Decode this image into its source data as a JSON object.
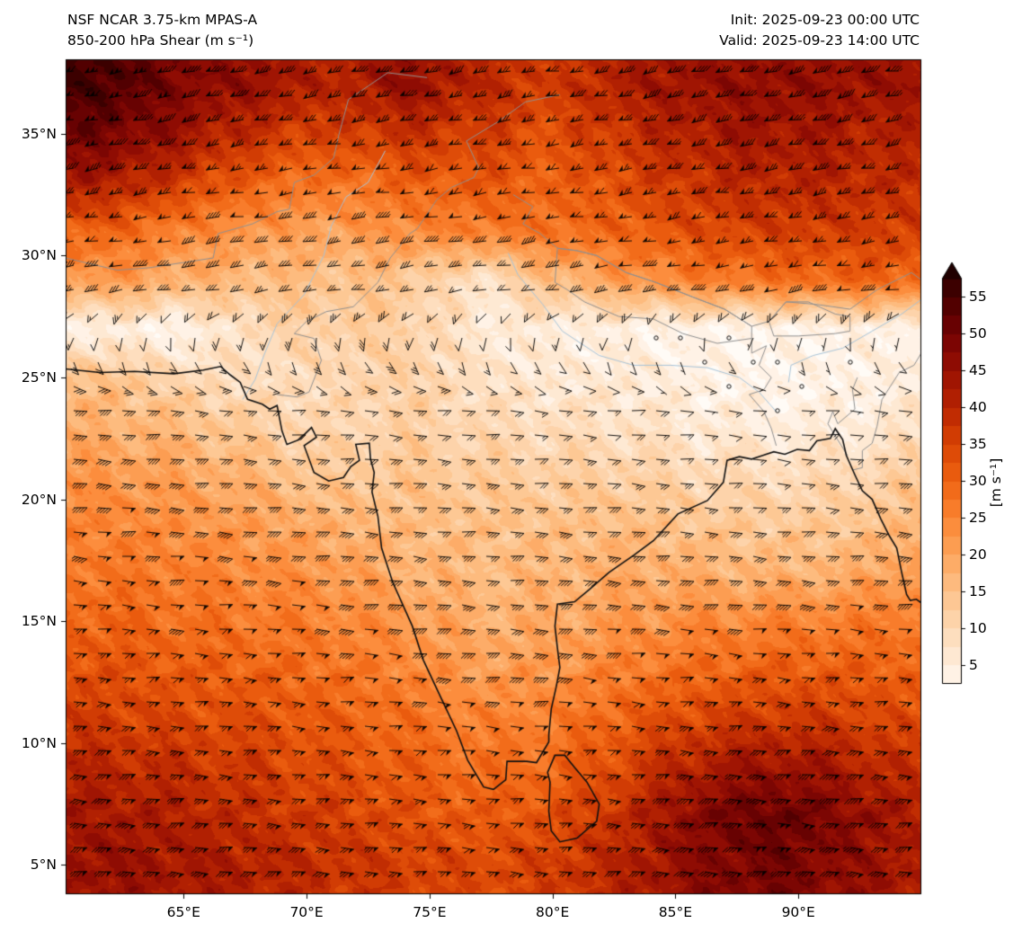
{
  "header": {
    "title_line1": "NSF NCAR 3.75-km MPAS-A",
    "title_line2": "850-200 hPa Shear (m s⁻¹)",
    "init_line": "Init: 2025-09-23 00:00 UTC",
    "valid_line": "Valid: 2025-09-23 14:00 UTC"
  },
  "axes": {
    "y_ticks": [
      {
        "label": "35°N",
        "lat": 35
      },
      {
        "label": "30°N",
        "lat": 30
      },
      {
        "label": "25°N",
        "lat": 25
      },
      {
        "label": "20°N",
        "lat": 20
      },
      {
        "label": "15°N",
        "lat": 15
      },
      {
        "label": "10°N",
        "lat": 10
      },
      {
        "label": "5°N",
        "lat": 5
      }
    ],
    "x_ticks": [
      {
        "label": "65°E",
        "lon": 65
      },
      {
        "label": "70°E",
        "lon": 70
      },
      {
        "label": "75°E",
        "lon": 75
      },
      {
        "label": "80°E",
        "lon": 80
      },
      {
        "label": "85°E",
        "lon": 85
      },
      {
        "label": "90°E",
        "lon": 90
      }
    ]
  },
  "colorbar": {
    "ticks": [
      5,
      10,
      15,
      20,
      25,
      30,
      35,
      40,
      45,
      50,
      55
    ],
    "unit_label": "[m s⁻¹]",
    "vmin": 2.5,
    "vmax": 57.5,
    "extend": "max"
  },
  "chart_data": {
    "type": "heatmap",
    "title": "850-200 hPa Shear (m s⁻¹)",
    "model": "NSF NCAR 3.75-km MPAS-A",
    "init": "2025-09-23 00:00 UTC",
    "valid": "2025-09-23 14:00 UTC",
    "xlabel": "",
    "ylabel": "",
    "grid": false,
    "colorbar_position": "right",
    "lon_range": [
      60.2,
      95.0
    ],
    "lat_range": [
      3.8,
      38.05
    ],
    "grid_lons": [
      62,
      65,
      68,
      71,
      74,
      77,
      80,
      83,
      86,
      89,
      92,
      95
    ],
    "grid_lats": [
      37,
      35,
      33,
      31,
      29,
      27,
      25,
      23,
      21,
      19,
      17,
      15,
      13,
      11,
      9,
      7,
      5
    ],
    "shear_values": [
      [
        55,
        48,
        45,
        40,
        46,
        40,
        36,
        42,
        45,
        46,
        45,
        44
      ],
      [
        50,
        44,
        38,
        35,
        38,
        36,
        33,
        38,
        42,
        44,
        42,
        40
      ],
      [
        42,
        36,
        30,
        27,
        30,
        32,
        30,
        34,
        38,
        40,
        40,
        38
      ],
      [
        30,
        25,
        22,
        20,
        24,
        26,
        28,
        30,
        34,
        36,
        36,
        36
      ],
      [
        22,
        18,
        16,
        15,
        14,
        7,
        16,
        22,
        26,
        28,
        30,
        30
      ],
      [
        4,
        3,
        10,
        12,
        12,
        6,
        5,
        4,
        3,
        3,
        4,
        4
      ],
      [
        15,
        10,
        8,
        10,
        12,
        8,
        6,
        6,
        4,
        3,
        4,
        5
      ],
      [
        18,
        16,
        12,
        10,
        12,
        10,
        9,
        8,
        6,
        5,
        5,
        8
      ],
      [
        22,
        20,
        17,
        13,
        14,
        13,
        12,
        12,
        10,
        9,
        10,
        13
      ],
      [
        25,
        23,
        21,
        18,
        16,
        15,
        15,
        16,
        14,
        13,
        14,
        17
      ],
      [
        27,
        26,
        24,
        22,
        18,
        16,
        17,
        19,
        18,
        17,
        18,
        22
      ],
      [
        30,
        28,
        27,
        25,
        22,
        18,
        19,
        22,
        24,
        25,
        26,
        27
      ],
      [
        33,
        31,
        30,
        28,
        25,
        21,
        22,
        26,
        29,
        31,
        31,
        30
      ],
      [
        36,
        34,
        33,
        31,
        28,
        25,
        26,
        31,
        35,
        37,
        36,
        33
      ],
      [
        40,
        38,
        36,
        33,
        31,
        28,
        29,
        35,
        42,
        45,
        42,
        37
      ],
      [
        43,
        41,
        38,
        36,
        33,
        31,
        33,
        39,
        48,
        52,
        47,
        41
      ],
      [
        45,
        43,
        41,
        38,
        36,
        34,
        36,
        41,
        47,
        50,
        46,
        42
      ]
    ],
    "colormap": [
      [
        0,
        "#ffffff"
      ],
      [
        5,
        "#ffeedd"
      ],
      [
        10,
        "#fdd9b4"
      ],
      [
        15,
        "#fdc28a"
      ],
      [
        20,
        "#fda55c"
      ],
      [
        25,
        "#fb8533"
      ],
      [
        30,
        "#ef6312"
      ],
      [
        35,
        "#d94404"
      ],
      [
        40,
        "#b92502"
      ],
      [
        45,
        "#981003"
      ],
      [
        50,
        "#730203"
      ],
      [
        55,
        "#470000"
      ],
      [
        60,
        "#1c0000"
      ]
    ],
    "wind": {
      "description": "850-200 hPa shear vector barbs; westerlies north of ~28N, calm band near 26-27N, easterlies south of ~24N",
      "dir_from_north_deg": 262,
      "dir_from_south_deg": 95,
      "transition_lat": [
        24,
        28.5
      ],
      "calm_threshold_kt": 5,
      "barb_spacing_px": 27
    },
    "map": {
      "coastline": [
        [
          60.2,
          25.35
        ],
        [
          61.6,
          25.2
        ],
        [
          63.0,
          25.25
        ],
        [
          64.6,
          25.15
        ],
        [
          65.8,
          25.3
        ],
        [
          66.5,
          25.45
        ],
        [
          66.9,
          25.1
        ],
        [
          67.3,
          24.8
        ],
        [
          67.6,
          24.1
        ],
        [
          68.2,
          23.9
        ],
        [
          68.5,
          23.7
        ],
        [
          68.8,
          23.85
        ],
        [
          69.0,
          22.8
        ],
        [
          69.2,
          22.25
        ],
        [
          69.7,
          22.45
        ],
        [
          70.2,
          22.95
        ],
        [
          70.4,
          22.55
        ],
        [
          69.9,
          22.2
        ],
        [
          70.3,
          21.1
        ],
        [
          70.9,
          20.75
        ],
        [
          71.5,
          20.9
        ],
        [
          71.8,
          21.35
        ],
        [
          72.15,
          21.6
        ],
        [
          72.0,
          22.25
        ],
        [
          72.55,
          22.3
        ],
        [
          72.6,
          21.65
        ],
        [
          72.75,
          21.1
        ],
        [
          72.66,
          20.3
        ],
        [
          72.9,
          19.3
        ],
        [
          73.05,
          18.0
        ],
        [
          73.5,
          16.6
        ],
        [
          74.3,
          14.8
        ],
        [
          74.75,
          13.4
        ],
        [
          75.4,
          12.0
        ],
        [
          76.1,
          10.5
        ],
        [
          76.55,
          9.3
        ],
        [
          77.2,
          8.2
        ],
        [
          77.6,
          8.1
        ],
        [
          78.1,
          8.5
        ],
        [
          78.15,
          9.25
        ],
        [
          78.95,
          9.25
        ],
        [
          79.35,
          9.2
        ],
        [
          79.85,
          10.05
        ],
        [
          79.85,
          10.35
        ],
        [
          79.95,
          11.4
        ],
        [
          80.15,
          12.3
        ],
        [
          80.3,
          13.1
        ],
        [
          80.2,
          13.9
        ],
        [
          80.1,
          14.8
        ],
        [
          80.2,
          15.7
        ],
        [
          80.9,
          15.8
        ],
        [
          81.5,
          16.3
        ],
        [
          82.3,
          17.0
        ],
        [
          83.3,
          17.7
        ],
        [
          84.1,
          18.3
        ],
        [
          85.1,
          19.4
        ],
        [
          86.3,
          19.95
        ],
        [
          86.95,
          20.7
        ],
        [
          87.1,
          21.6
        ],
        [
          87.6,
          21.75
        ],
        [
          88.1,
          21.65
        ],
        [
          88.55,
          21.8
        ],
        [
          89.0,
          21.95
        ],
        [
          89.45,
          21.85
        ],
        [
          89.95,
          22.05
        ],
        [
          90.45,
          22.0
        ],
        [
          90.75,
          22.4
        ],
        [
          91.3,
          22.5
        ],
        [
          91.5,
          22.9
        ],
        [
          91.8,
          22.45
        ],
        [
          91.95,
          21.8
        ],
        [
          92.3,
          21.0
        ],
        [
          92.6,
          20.35
        ],
        [
          93.0,
          20.0
        ],
        [
          93.35,
          19.2
        ],
        [
          93.7,
          18.5
        ],
        [
          94.0,
          18.0
        ],
        [
          94.2,
          17.0
        ],
        [
          94.4,
          16.1
        ],
        [
          94.55,
          15.85
        ],
        [
          94.8,
          15.9
        ],
        [
          95.0,
          15.75
        ]
      ],
      "sri_lanka": [
        [
          79.9,
          8.4
        ],
        [
          79.8,
          8.8
        ],
        [
          80.1,
          9.5
        ],
        [
          80.5,
          9.5
        ],
        [
          80.9,
          9.0
        ],
        [
          81.4,
          8.4
        ],
        [
          81.9,
          7.5
        ],
        [
          81.8,
          6.8
        ],
        [
          81.0,
          6.1
        ],
        [
          80.3,
          5.95
        ],
        [
          79.95,
          6.4
        ],
        [
          79.85,
          7.2
        ]
      ],
      "borders": [
        [
          [
            60.2,
            29.9
          ],
          [
            62.3,
            29.4
          ],
          [
            63.6,
            29.5
          ],
          [
            66.2,
            29.9
          ],
          [
            66.4,
            30.9
          ],
          [
            67.8,
            31.3
          ],
          [
            68.8,
            31.8
          ],
          [
            69.3,
            31.9
          ],
          [
            69.5,
            33.0
          ],
          [
            70.3,
            33.3
          ],
          [
            71.1,
            34.0
          ],
          [
            71.3,
            34.9
          ],
          [
            71.7,
            36.4
          ],
          [
            73.3,
            37.5
          ],
          [
            74.9,
            37.3
          ]
        ],
        [
          [
            68.8,
            24.3
          ],
          [
            69.6,
            24.2
          ],
          [
            70.1,
            24.4
          ],
          [
            70.6,
            25.7
          ],
          [
            70.3,
            26.6
          ],
          [
            69.5,
            26.8
          ],
          [
            70.0,
            27.3
          ],
          [
            70.8,
            27.7
          ],
          [
            71.9,
            27.9
          ],
          [
            72.9,
            28.9
          ],
          [
            73.4,
            29.9
          ],
          [
            74.2,
            30.9
          ],
          [
            74.5,
            31.1
          ],
          [
            75.3,
            32.3
          ],
          [
            75.9,
            32.8
          ],
          [
            76.8,
            33.2
          ],
          [
            77.0,
            33.6
          ],
          [
            76.5,
            34.7
          ],
          [
            77.8,
            35.5
          ],
          [
            78.9,
            36.3
          ],
          [
            80.3,
            36.6
          ]
        ],
        [
          [
            80.1,
            28.9
          ],
          [
            80.6,
            28.6
          ],
          [
            81.3,
            28.1
          ],
          [
            82.7,
            27.5
          ],
          [
            84.1,
            27.4
          ],
          [
            85.3,
            26.8
          ],
          [
            86.7,
            26.4
          ],
          [
            88.1,
            26.6
          ],
          [
            88.1,
            27.1
          ],
          [
            87.0,
            27.8
          ],
          [
            85.7,
            28.3
          ],
          [
            84.2,
            28.9
          ],
          [
            83.0,
            29.3
          ],
          [
            81.8,
            30.0
          ],
          [
            81.0,
            30.2
          ],
          [
            80.2,
            30.3
          ],
          [
            80.1,
            28.9
          ]
        ],
        [
          [
            89.0,
            26.7
          ],
          [
            90.0,
            26.7
          ],
          [
            91.5,
            26.8
          ],
          [
            92.1,
            26.9
          ],
          [
            92.1,
            27.5
          ],
          [
            91.5,
            27.6
          ],
          [
            90.4,
            28.1
          ],
          [
            89.5,
            28.1
          ],
          [
            88.8,
            27.3
          ],
          [
            89.0,
            26.7
          ]
        ],
        [
          [
            88.1,
            26.6
          ],
          [
            88.1,
            26.0
          ],
          [
            88.7,
            26.3
          ],
          [
            88.4,
            25.5
          ],
          [
            88.9,
            25.0
          ],
          [
            88.6,
            24.5
          ],
          [
            88.0,
            24.3
          ],
          [
            88.6,
            23.6
          ],
          [
            88.9,
            22.9
          ],
          [
            89.1,
            22.2
          ]
        ],
        [
          [
            92.4,
            25.0
          ],
          [
            92.2,
            24.5
          ],
          [
            92.3,
            23.7
          ],
          [
            91.6,
            23.1
          ],
          [
            91.4,
            23.6
          ],
          [
            91.2,
            23.1
          ],
          [
            91.5,
            22.6
          ],
          [
            92.0,
            21.8
          ]
        ],
        [
          [
            92.2,
            21.2
          ],
          [
            92.6,
            21.3
          ],
          [
            92.6,
            22.0
          ],
          [
            93.0,
            22.3
          ],
          [
            93.2,
            23.0
          ],
          [
            93.4,
            24.1
          ],
          [
            94.1,
            25.2
          ],
          [
            94.7,
            25.5
          ],
          [
            95.0,
            26.0
          ]
        ],
        [
          [
            78.4,
            32.5
          ],
          [
            79.2,
            32.0
          ],
          [
            78.8,
            31.3
          ],
          [
            79.5,
            30.9
          ],
          [
            80.2,
            30.3
          ],
          [
            81.0,
            30.2
          ],
          [
            81.8,
            30.0
          ],
          [
            83.0,
            29.3
          ],
          [
            84.2,
            28.9
          ],
          [
            85.7,
            28.3
          ],
          [
            87.0,
            27.8
          ],
          [
            88.1,
            27.1
          ],
          [
            88.8,
            27.3
          ],
          [
            89.5,
            28.1
          ],
          [
            90.7,
            28.0
          ],
          [
            92.1,
            27.8
          ],
          [
            93.2,
            28.6
          ],
          [
            94.6,
            29.3
          ],
          [
            95.0,
            29.0
          ]
        ]
      ],
      "rivers": [
        [
          [
            73.2,
            34.3
          ],
          [
            72.5,
            33.0
          ],
          [
            71.6,
            32.4
          ],
          [
            71.0,
            31.2
          ],
          [
            70.7,
            30.0
          ],
          [
            69.9,
            28.4
          ],
          [
            68.8,
            27.2
          ],
          [
            68.3,
            26.0
          ],
          [
            67.9,
            24.9
          ],
          [
            67.4,
            24.1
          ]
        ],
        [
          [
            78.2,
            30.1
          ],
          [
            78.6,
            29.2
          ],
          [
            79.6,
            28.0
          ],
          [
            80.4,
            26.9
          ],
          [
            81.9,
            25.9
          ],
          [
            83.3,
            25.5
          ],
          [
            84.8,
            25.5
          ],
          [
            86.3,
            25.4
          ],
          [
            87.6,
            25.0
          ],
          [
            88.4,
            24.4
          ],
          [
            89.1,
            23.6
          ]
        ],
        [
          [
            95.0,
            28.2
          ],
          [
            94.2,
            27.6
          ],
          [
            93.0,
            26.9
          ],
          [
            91.8,
            26.2
          ],
          [
            90.6,
            25.9
          ],
          [
            89.7,
            25.5
          ],
          [
            89.6,
            24.8
          ]
        ]
      ]
    }
  }
}
